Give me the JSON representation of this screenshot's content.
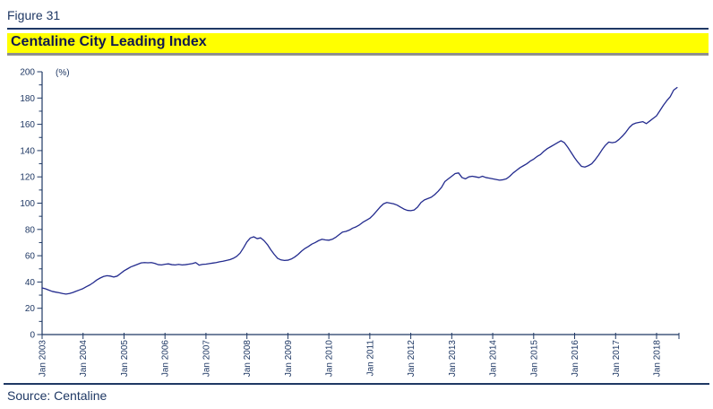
{
  "figure_label": "Figure 31",
  "title": "Centaline City Leading Index",
  "source": "Source: Centaline",
  "colors": {
    "navy": "#1F3864",
    "title_navy": "#10194F",
    "band_yellow": "#FFFF00",
    "gray": "#8F8F8F",
    "line": "#232B8E",
    "background": "#FFFFFF"
  },
  "chart_data": {
    "type": "line",
    "title": "Centaline City Leading Index",
    "unit_label": "(%)",
    "xlabel": "",
    "ylabel": "",
    "ylim": [
      0,
      200
    ],
    "y_tick_step": 20,
    "y_minor_step": 10,
    "grid": "off",
    "legend": "none",
    "x_tick_labels": [
      "Jan 2003",
      "Jan 2004",
      "Jan 2005",
      "Jan 2006",
      "Jan 2007",
      "Jan 2008",
      "Jan 2009",
      "Jan 2010",
      "Jan 2011",
      "Jan 2012",
      "Jan 2013",
      "Jan 2014",
      "Jan 2015",
      "Jan 2016",
      "Jan 2017",
      "Jan 2018"
    ],
    "series": [
      {
        "name": "Centaline City Leading Index",
        "x_start": "Jan 2003",
        "x_interval": "monthly",
        "values": [
          35.5,
          34.8,
          33.8,
          32.8,
          32.3,
          31.8,
          31.2,
          30.8,
          31.2,
          32.0,
          33.0,
          34.0,
          35.0,
          36.5,
          37.8,
          39.5,
          41.5,
          43.0,
          44.2,
          44.8,
          44.5,
          43.8,
          44.5,
          46.5,
          48.5,
          50.0,
          51.5,
          52.5,
          53.5,
          54.5,
          54.8,
          54.6,
          54.8,
          54.2,
          53.2,
          53.0,
          53.5,
          53.8,
          53.2,
          53.0,
          53.4,
          53.0,
          53.2,
          53.6,
          54.0,
          54.8,
          52.8,
          53.4,
          53.6,
          54.0,
          54.4,
          54.8,
          55.4,
          55.8,
          56.4,
          57.0,
          58.0,
          59.5,
          62.0,
          66.0,
          70.5,
          73.5,
          74.4,
          73.0,
          73.6,
          71.5,
          68.5,
          64.5,
          61.0,
          58.0,
          56.8,
          56.4,
          56.6,
          57.5,
          59.0,
          61.0,
          63.5,
          65.5,
          67.0,
          68.8,
          70.0,
          71.5,
          72.5,
          72.0,
          71.8,
          72.5,
          74.0,
          76.0,
          78.0,
          78.5,
          79.5,
          81.0,
          82.0,
          83.5,
          85.5,
          87.0,
          88.5,
          91.0,
          94.0,
          97.0,
          99.5,
          100.5,
          100.0,
          99.5,
          98.5,
          97.0,
          95.5,
          94.5,
          94.3,
          94.8,
          97.0,
          100.5,
          102.5,
          103.5,
          104.5,
          106.5,
          109.0,
          112.0,
          116.5,
          118.5,
          120.5,
          122.5,
          123.0,
          119.5,
          118.5,
          120.0,
          120.5,
          120.0,
          119.5,
          120.5,
          119.5,
          119.0,
          118.5,
          118.0,
          117.5,
          117.8,
          118.5,
          120.5,
          123.0,
          125.0,
          127.0,
          128.5,
          130.0,
          132.0,
          133.5,
          135.5,
          137.0,
          139.5,
          141.5,
          143.0,
          144.5,
          146.0,
          147.5,
          146.0,
          142.5,
          138.5,
          134.5,
          131.0,
          128.0,
          127.5,
          128.5,
          130.0,
          133.0,
          136.5,
          140.5,
          144.0,
          146.5,
          146.0,
          146.5,
          148.5,
          151.0,
          154.0,
          157.5,
          160.0,
          161.0,
          161.5,
          162.0,
          160.5,
          162.5,
          164.5,
          166.5,
          170.5,
          174.5,
          178.0,
          181.0,
          186.0,
          188.0
        ]
      }
    ]
  }
}
